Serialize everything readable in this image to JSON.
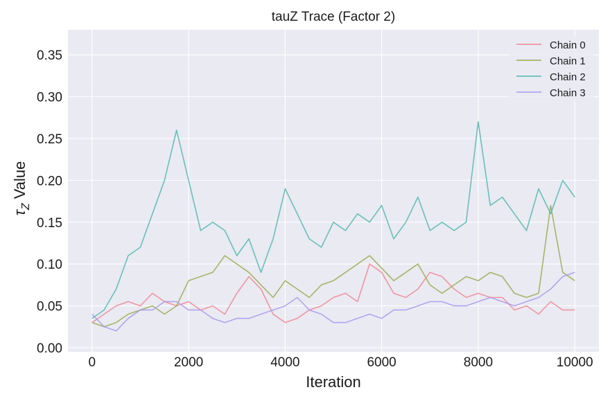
{
  "chart_data": {
    "type": "line",
    "title": "tauZ Trace (Factor 2)",
    "xlabel": "Iteration",
    "ylabel_symbol": "τ",
    "ylabel_subscript": "Z",
    "ylabel_rest": " Value",
    "xlim": [
      -500,
      10500
    ],
    "ylim": [
      -0.005,
      0.38
    ],
    "xticks": [
      0,
      2000,
      4000,
      6000,
      8000,
      10000
    ],
    "yticks": [
      0.0,
      0.05,
      0.1,
      0.15,
      0.2,
      0.25,
      0.3,
      0.35
    ],
    "grid": true,
    "legend_position": "top-right",
    "x": [
      0,
      250,
      500,
      750,
      1000,
      1250,
      1500,
      1750,
      2000,
      2250,
      2500,
      2750,
      3000,
      3250,
      3500,
      3750,
      4000,
      4250,
      4500,
      4750,
      5000,
      5250,
      5500,
      5750,
      6000,
      6250,
      6500,
      6750,
      7000,
      7250,
      7500,
      7750,
      8000,
      8250,
      8500,
      8750,
      9000,
      9250,
      9500,
      9750,
      10000
    ],
    "series": [
      {
        "name": "Chain 0",
        "color": "#f08594",
        "values": [
          0.03,
          0.04,
          0.05,
          0.055,
          0.05,
          0.065,
          0.055,
          0.05,
          0.055,
          0.045,
          0.05,
          0.04,
          0.065,
          0.085,
          0.07,
          0.04,
          0.03,
          0.035,
          0.045,
          0.05,
          0.06,
          0.065,
          0.055,
          0.1,
          0.09,
          0.065,
          0.06,
          0.07,
          0.09,
          0.085,
          0.07,
          0.06,
          0.065,
          0.06,
          0.06,
          0.045,
          0.05,
          0.04,
          0.055,
          0.045,
          0.045
        ]
      },
      {
        "name": "Chain 1",
        "color": "#9aaa50",
        "values": [
          0.03,
          0.025,
          0.03,
          0.04,
          0.045,
          0.05,
          0.04,
          0.05,
          0.08,
          0.085,
          0.09,
          0.11,
          0.1,
          0.09,
          0.075,
          0.06,
          0.08,
          0.07,
          0.06,
          0.075,
          0.08,
          0.09,
          0.1,
          0.11,
          0.095,
          0.08,
          0.09,
          0.1,
          0.075,
          0.065,
          0.075,
          0.085,
          0.08,
          0.09,
          0.085,
          0.065,
          0.06,
          0.065,
          0.17,
          0.09,
          0.08
        ]
      },
      {
        "name": "Chain 2",
        "color": "#50b8ad",
        "values": [
          0.035,
          0.045,
          0.07,
          0.11,
          0.12,
          0.16,
          0.2,
          0.26,
          0.2,
          0.14,
          0.15,
          0.14,
          0.11,
          0.13,
          0.09,
          0.13,
          0.19,
          0.16,
          0.13,
          0.12,
          0.15,
          0.14,
          0.16,
          0.15,
          0.17,
          0.13,
          0.15,
          0.18,
          0.14,
          0.15,
          0.14,
          0.15,
          0.27,
          0.17,
          0.18,
          0.16,
          0.14,
          0.19,
          0.16,
          0.2,
          0.18
        ]
      },
      {
        "name": "Chain 3",
        "color": "#a798f0",
        "values": [
          0.04,
          0.025,
          0.02,
          0.035,
          0.045,
          0.045,
          0.055,
          0.055,
          0.045,
          0.045,
          0.035,
          0.03,
          0.035,
          0.035,
          0.04,
          0.045,
          0.05,
          0.06,
          0.045,
          0.04,
          0.03,
          0.03,
          0.035,
          0.04,
          0.035,
          0.045,
          0.045,
          0.05,
          0.055,
          0.055,
          0.05,
          0.05,
          0.055,
          0.06,
          0.055,
          0.05,
          0.055,
          0.06,
          0.07,
          0.085,
          0.09
        ]
      }
    ]
  }
}
